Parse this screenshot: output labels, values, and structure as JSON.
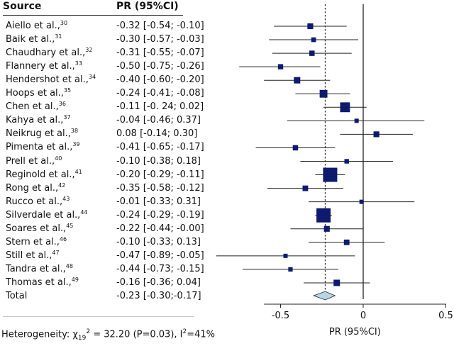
{
  "table": {
    "col_source": "Source",
    "col_pr": "PR (95%CI)"
  },
  "rows": [
    {
      "name": "Aiello et al.,",
      "ref": "30",
      "pr": "-0.32 [-0.54; -0.10]"
    },
    {
      "name": "Baik et al.,",
      "ref": "31",
      "pr": "-0.30 [-0.57; -0.03]"
    },
    {
      "name": "Chaudhary et al.,",
      "ref": "32",
      "pr": "-0.31 [-0.55; -0.07]"
    },
    {
      "name": "Flannery et al.,",
      "ref": "33",
      "pr": "-0.50 [-0.75; -0.26]"
    },
    {
      "name": "Hendershot et al.,",
      "ref": "34",
      "pr": "-0.40 [-0.60; -0.20]"
    },
    {
      "name": "Hoops et al.,",
      "ref": "35",
      "pr": "-0.24 [-0.41; -0.08]"
    },
    {
      "name": "Chen et al.,",
      "ref": "36",
      "pr": "-0.11 [-0. 24; 0.02]"
    },
    {
      "name": "Kahya et al.,",
      "ref": "37",
      "pr": "-0.04 [-0.46; 0.37]"
    },
    {
      "name": "Neikrug et al.,",
      "ref": "38",
      "pr": "0.08 [-0.14; 0.30]"
    },
    {
      "name": "Pimenta et al.,",
      "ref": "39",
      "pr": "-0.41 [-0.65; -0.17]"
    },
    {
      "name": "Prell et al.,",
      "ref": "40",
      "pr": "-0.10 [-0.38; 0.18]"
    },
    {
      "name": "Reginold et al.,",
      "ref": "41",
      "pr": "-0.20 [-0.29; -0.11]"
    },
    {
      "name": "Rong et al.,",
      "ref": "42",
      "pr": "-0.35 [-0.58; -0.12]"
    },
    {
      "name": "Rucco et al.,",
      "ref": "43",
      "pr": "-0.01 [-0.33; 0.31]"
    },
    {
      "name": "Silverdale et al.,",
      "ref": "44",
      "pr": "-0.24 [-0.29; -0.19]"
    },
    {
      "name": "Soares et al.,",
      "ref": "45",
      "pr": "-0.22 [-0.44; -0.00]"
    },
    {
      "name": "Stern et al.,",
      "ref": "46",
      "pr": "-0.10 [-0.33; 0.13]"
    },
    {
      "name": "Still et al.,",
      "ref": "47",
      "pr": "-0.47 [-0.89; -0.05]"
    },
    {
      "name": "Tandra et al.,",
      "ref": "48",
      "pr": "-0.44 [-0.73; -0.15]"
    },
    {
      "name": "Thomas et al.,",
      "ref": "49",
      "pr": "-0.16 [-0.36; 0.04]"
    },
    {
      "name": "Total",
      "ref": "",
      "pr": "-0.23 [-0.30;-0.17]"
    }
  ],
  "heterogeneity": {
    "label": "Heterogeneity:",
    "chi": "χ",
    "chi_sub": "19",
    "chi_sup": "2",
    "stat": " = 32.20 (P=0.03), I",
    "i_sup": "2",
    "tail": "=41%"
  },
  "chart_data": {
    "type": "forest",
    "title": "",
    "xlabel": "PR (95%CI)",
    "xlim": [
      -0.6,
      0.5
    ],
    "xticks": [
      -0.5,
      0,
      0.5
    ],
    "xtick_labels": [
      "-0.5",
      "0",
      "0.5"
    ],
    "reference_line": 0,
    "pooled_line": -0.23,
    "studies": [
      {
        "label": "Aiello et al.",
        "est": -0.32,
        "lo": -0.54,
        "hi": -0.1
      },
      {
        "label": "Baik et al.",
        "est": -0.3,
        "lo": -0.57,
        "hi": -0.03
      },
      {
        "label": "Chaudhary et al.",
        "est": -0.31,
        "lo": -0.55,
        "hi": -0.07
      },
      {
        "label": "Flannery et al.",
        "est": -0.5,
        "lo": -0.75,
        "hi": -0.26
      },
      {
        "label": "Hendershot et al.",
        "est": -0.4,
        "lo": -0.6,
        "hi": -0.2
      },
      {
        "label": "Hoops et al.",
        "est": -0.24,
        "lo": -0.41,
        "hi": -0.08
      },
      {
        "label": "Chen et al.",
        "est": -0.11,
        "lo": -0.24,
        "hi": 0.02
      },
      {
        "label": "Kahya et al.",
        "est": -0.04,
        "lo": -0.46,
        "hi": 0.37
      },
      {
        "label": "Neikrug et al.",
        "est": 0.08,
        "lo": -0.14,
        "hi": 0.3
      },
      {
        "label": "Pimenta et al.",
        "est": -0.41,
        "lo": -0.65,
        "hi": -0.17
      },
      {
        "label": "Prell et al.",
        "est": -0.1,
        "lo": -0.38,
        "hi": 0.18
      },
      {
        "label": "Reginold et al.",
        "est": -0.2,
        "lo": -0.29,
        "hi": -0.11
      },
      {
        "label": "Rong et al.",
        "est": -0.35,
        "lo": -0.58,
        "hi": -0.12
      },
      {
        "label": "Rucco et al.",
        "est": -0.01,
        "lo": -0.33,
        "hi": 0.31
      },
      {
        "label": "Silverdale et al.",
        "est": -0.24,
        "lo": -0.29,
        "hi": -0.19
      },
      {
        "label": "Soares et al.",
        "est": -0.22,
        "lo": -0.44,
        "hi": 0.0
      },
      {
        "label": "Stern et al.",
        "est": -0.1,
        "lo": -0.33,
        "hi": 0.13
      },
      {
        "label": "Still et al.",
        "est": -0.47,
        "lo": -0.89,
        "hi": -0.05
      },
      {
        "label": "Tandra et al.",
        "est": -0.44,
        "lo": -0.73,
        "hi": -0.15
      },
      {
        "label": "Thomas et al.",
        "est": -0.16,
        "lo": -0.36,
        "hi": 0.04
      }
    ],
    "pooled": {
      "label": "Total",
      "est": -0.23,
      "lo": -0.3,
      "hi": -0.17
    },
    "colors": {
      "marker": "#0d1a6e",
      "diamond": "#b5d6e6",
      "line": "#222222"
    }
  }
}
